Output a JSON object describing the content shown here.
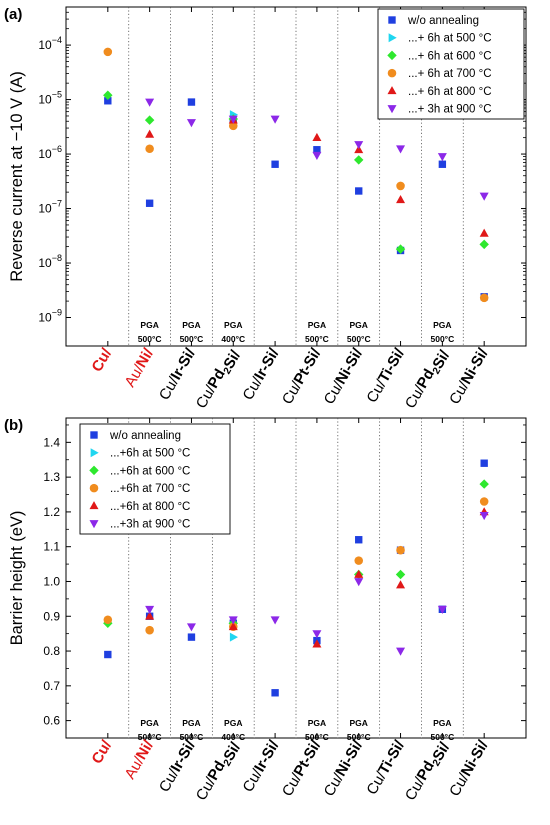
{
  "chart_data": [
    {
      "panel_label": "(a)",
      "type": "scatter",
      "ylabel": "Reverse current at −10 V  (A)",
      "yscale": "log",
      "ylim": [
        3e-10,
        0.0005
      ],
      "yticks": [
        {
          "value": 0.0001,
          "exp": "−4"
        },
        {
          "value": 1e-05,
          "exp": "−5"
        },
        {
          "value": 1e-06,
          "exp": "−6"
        },
        {
          "value": 1e-07,
          "exp": "−7"
        },
        {
          "value": 1e-08,
          "exp": "−8"
        },
        {
          "value": 1e-09,
          "exp": "−9"
        }
      ],
      "legend": {
        "position": "top-right"
      },
      "annotations": [
        {
          "i": 1,
          "line1": "PGA",
          "line2": "500°C"
        },
        {
          "i": 2,
          "line1": "PGA",
          "line2": "500°C"
        },
        {
          "i": 3,
          "line1": "PGA",
          "line2": "400°C"
        },
        {
          "i": 5,
          "line1": "PGA",
          "line2": "500°C"
        },
        {
          "i": 6,
          "line1": "PGA",
          "line2": "500°C"
        },
        {
          "i": 8,
          "line1": "PGA",
          "line2": "500°C"
        }
      ],
      "series": [
        {
          "name": "w/o annealing",
          "marker": "square",
          "color": "#1f3fe0",
          "values": [
            9.5e-06,
            1.25e-07,
            9e-06,
            4e-06,
            6.5e-07,
            1.2e-06,
            2.1e-07,
            1.7e-08,
            6.5e-07,
            2.4e-09
          ]
        },
        {
          "name": "...+ 6h at 500 °C",
          "marker": "triangle-right",
          "color": "#1fd6f0",
          "values": [
            null,
            null,
            null,
            5.3e-06,
            null,
            null,
            null,
            null,
            null,
            null
          ]
        },
        {
          "name": "...+ 6h at 600 °C",
          "marker": "diamond",
          "color": "#2ee82e",
          "values": [
            1.2e-05,
            4.2e-06,
            null,
            4.4e-06,
            null,
            null,
            7.8e-07,
            1.8e-08,
            null,
            2.2e-08
          ]
        },
        {
          "name": "...+ 6h at 700 °C",
          "marker": "circle",
          "color": "#f08c1e",
          "values": [
            7.5e-05,
            1.25e-06,
            null,
            3.3e-06,
            null,
            null,
            null,
            2.6e-07,
            null,
            2.3e-09
          ]
        },
        {
          "name": "...+ 6h at 800 °C",
          "marker": "triangle-up",
          "color": "#e01818",
          "values": [
            null,
            2.3e-06,
            null,
            4.2e-06,
            null,
            2e-06,
            1.2e-06,
            1.45e-07,
            null,
            3.5e-08
          ]
        },
        {
          "name": "...+ 3h at 900 °C",
          "marker": "triangle-down",
          "color": "#8c28e8",
          "values": [
            null,
            9e-06,
            3.8e-06,
            4.4e-06,
            4.4e-06,
            9.5e-07,
            1.5e-06,
            1.25e-06,
            9e-07,
            1.7e-07
          ]
        }
      ]
    },
    {
      "panel_label": "(b)",
      "type": "scatter",
      "ylabel": "Barrier height  (eV)",
      "yscale": "linear",
      "ylim": [
        0.55,
        1.47
      ],
      "yticks": [
        "0.6",
        "0.7",
        "0.8",
        "0.9",
        "1.0",
        "1.1",
        "1.2",
        "1.3",
        "1.4"
      ],
      "legend": {
        "position": "top-left"
      },
      "annotations": [
        {
          "i": 1,
          "line1": "PGA",
          "line2": "500°C"
        },
        {
          "i": 2,
          "line1": "PGA",
          "line2": "500°C"
        },
        {
          "i": 3,
          "line1": "PGA",
          "line2": "400°C"
        },
        {
          "i": 5,
          "line1": "PGA",
          "line2": "500°C"
        },
        {
          "i": 6,
          "line1": "PGA",
          "line2": "500°C"
        },
        {
          "i": 8,
          "line1": "PGA",
          "line2": "500°C"
        }
      ],
      "series": [
        {
          "name": "w/o annealing",
          "marker": "square",
          "color": "#1f3fe0",
          "values": [
            0.79,
            0.9,
            0.84,
            0.88,
            0.68,
            0.83,
            1.12,
            1.09,
            0.92,
            1.34
          ]
        },
        {
          "name": "...+6h at 500 °C",
          "marker": "triangle-right",
          "color": "#1fd6f0",
          "values": [
            null,
            null,
            null,
            0.84,
            null,
            null,
            null,
            null,
            null,
            null
          ]
        },
        {
          "name": "...+6h at 600 °C",
          "marker": "diamond",
          "color": "#2ee82e",
          "values": [
            0.88,
            null,
            null,
            0.88,
            null,
            null,
            1.02,
            1.02,
            null,
            1.28
          ]
        },
        {
          "name": "...+6h at 700 °C",
          "marker": "circle",
          "color": "#f08c1e",
          "values": [
            0.89,
            0.86,
            null,
            0.87,
            null,
            null,
            1.06,
            1.09,
            null,
            1.23
          ]
        },
        {
          "name": "...+6h at 800 °C",
          "marker": "triangle-up",
          "color": "#e01818",
          "values": [
            null,
            0.9,
            null,
            0.87,
            null,
            0.82,
            1.02,
            0.99,
            null,
            1.2
          ]
        },
        {
          "name": "...+3h at 900 °C",
          "marker": "triangle-down",
          "color": "#8c28e8",
          "values": [
            null,
            0.92,
            0.87,
            0.89,
            0.89,
            0.85,
            1.0,
            0.8,
            0.92,
            1.19
          ]
        }
      ]
    }
  ],
  "categories": [
    {
      "parts": [
        {
          "t": "Cu/",
          "b": true,
          "c": "#e01818"
        }
      ]
    },
    {
      "parts": [
        {
          "t": "Au/",
          "b": false,
          "c": "#e01818"
        },
        {
          "t": "Ni/",
          "b": true,
          "c": "#e01818"
        }
      ]
    },
    {
      "parts": [
        {
          "t": "Cu/",
          "b": false,
          "c": "#000000"
        },
        {
          "t": "Ir-Si/",
          "b": true,
          "c": "#000000"
        }
      ]
    },
    {
      "parts": [
        {
          "t": "Cu/",
          "b": false,
          "c": "#000000"
        },
        {
          "t": "Pd",
          "b": true,
          "c": "#000000"
        },
        {
          "t": "2",
          "b": true,
          "c": "#000000",
          "sub": true
        },
        {
          "t": "Si/",
          "b": true,
          "c": "#000000"
        }
      ]
    },
    {
      "parts": [
        {
          "t": "Cu/",
          "b": false,
          "c": "#000000"
        },
        {
          "t": "Ir-Si/",
          "b": true,
          "c": "#000000"
        }
      ]
    },
    {
      "parts": [
        {
          "t": "Cu/",
          "b": false,
          "c": "#000000"
        },
        {
          "t": "Pt-Si/",
          "b": true,
          "c": "#000000"
        }
      ]
    },
    {
      "parts": [
        {
          "t": "Cu/",
          "b": false,
          "c": "#000000"
        },
        {
          "t": "Ni-Si/",
          "b": true,
          "c": "#000000"
        }
      ]
    },
    {
      "parts": [
        {
          "t": "Cu/",
          "b": false,
          "c": "#000000"
        },
        {
          "t": "Ti-Si/",
          "b": true,
          "c": "#000000"
        }
      ]
    },
    {
      "parts": [
        {
          "t": "Cu/",
          "b": false,
          "c": "#000000"
        },
        {
          "t": "Pd",
          "b": true,
          "c": "#000000"
        },
        {
          "t": "2",
          "b": true,
          "c": "#000000",
          "sub": true
        },
        {
          "t": "Si/",
          "b": true,
          "c": "#000000"
        }
      ]
    },
    {
      "parts": [
        {
          "t": "Cu/",
          "b": false,
          "c": "#000000"
        },
        {
          "t": "Ni-Si/",
          "b": true,
          "c": "#000000"
        }
      ]
    }
  ]
}
